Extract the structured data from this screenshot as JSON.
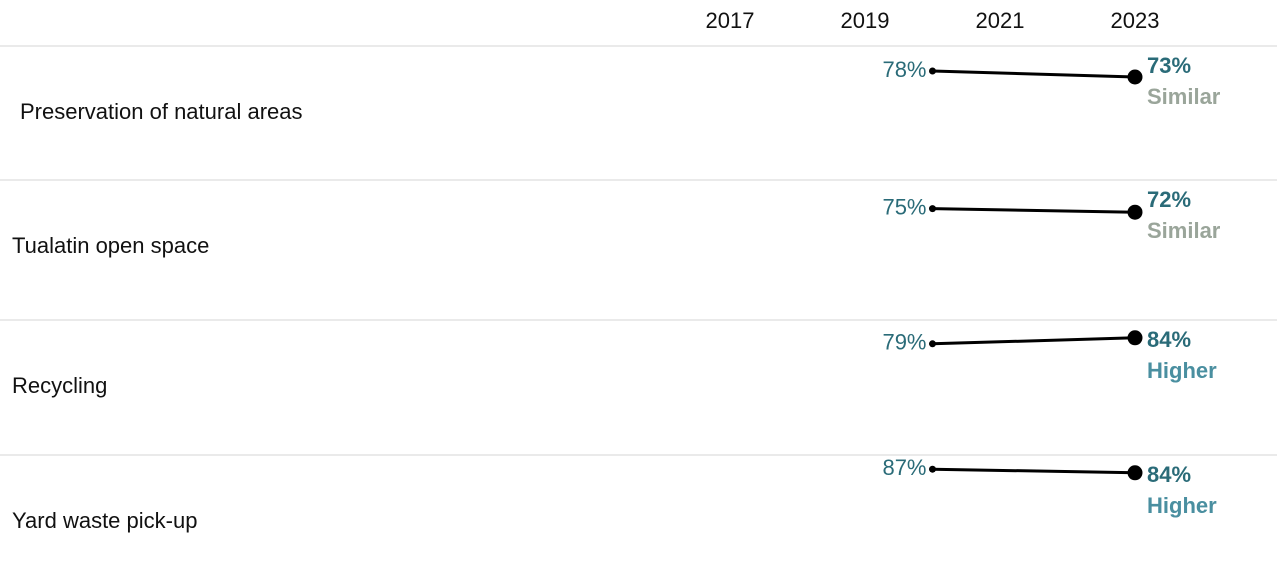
{
  "chart_data": {
    "type": "slope",
    "x": [
      2020,
      2023
    ],
    "xlim": [
      2017,
      2023
    ],
    "xticks": [
      2017,
      2019,
      2021,
      2023
    ],
    "color": "#000000",
    "label_color": "#2a6b78",
    "comparison_colors": {
      "Similar": "#9aa59a",
      "Higher": "#4a8fa0"
    },
    "series": [
      {
        "name": "Preservation of natural areas",
        "values": [
          78,
          73
        ],
        "value_labels": [
          "78%",
          "73%"
        ],
        "comparison": "Similar"
      },
      {
        "name": "Tualatin open space",
        "values": [
          75,
          72
        ],
        "value_labels": [
          "75%",
          "72%"
        ],
        "comparison": "Similar"
      },
      {
        "name": "Recycling",
        "values": [
          79,
          84
        ],
        "value_labels": [
          "79%",
          "84%"
        ],
        "comparison": "Higher"
      },
      {
        "name": "Yard waste pick-up",
        "values": [
          87,
          84
        ],
        "value_labels": [
          "87%",
          "84%"
        ],
        "comparison": "Higher"
      }
    ]
  }
}
